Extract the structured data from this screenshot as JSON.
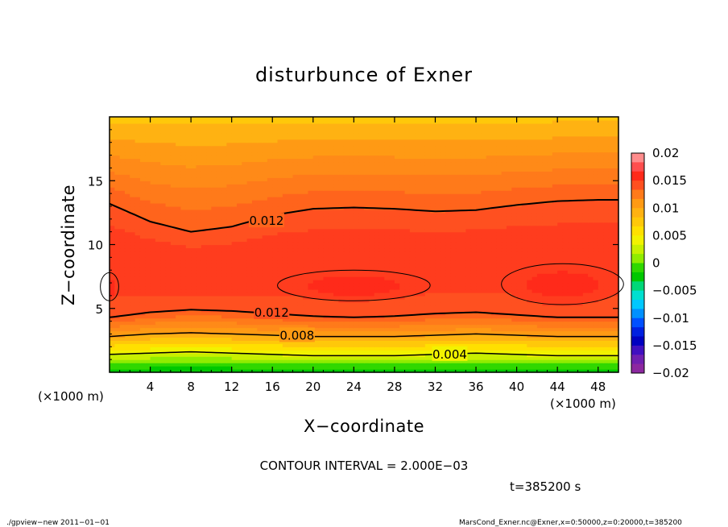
{
  "chart_data": {
    "type": "heatmap",
    "subtype": "filled contour",
    "title": "disturbunce of Exner",
    "xlabel": "X−coordinate",
    "ylabel": "Z−coordinate",
    "x_unit_label": "(×1000 m)",
    "y_unit_label": "(×1000 m)",
    "xlim": [
      0,
      50
    ],
    "ylim": [
      0,
      20
    ],
    "x_ticks": [
      4,
      8,
      12,
      16,
      20,
      24,
      28,
      32,
      36,
      40,
      44,
      48
    ],
    "x_tick_labels": [
      "4",
      "8",
      "12",
      "16",
      "20",
      "24",
      "28",
      "32",
      "36",
      "40",
      "44",
      "48"
    ],
    "y_ticks": [
      5,
      10,
      15
    ],
    "y_tick_labels": [
      "5",
      "10",
      "15"
    ],
    "contour_interval_text": "CONTOUR INTERVAL = 2.000E−03",
    "time_text": "t=385200 s",
    "colorbar": {
      "range": [
        -0.02,
        0.02
      ],
      "tick_values": [
        0.02,
        0.015,
        0.01,
        0.005,
        0,
        -0.005,
        -0.01,
        -0.015,
        -0.02
      ],
      "tick_labels": [
        "0.02",
        "0.015",
        "0.01",
        "0.005",
        "0",
        "−0.005",
        "−0.01",
        "−0.015",
        "−0.02"
      ],
      "colors_top_to_bottom": [
        "#ff8c8c",
        "#ff4e4e",
        "#ff2a1a",
        "#ff5020",
        "#ff7a1a",
        "#ff9a14",
        "#ffb212",
        "#ffc80a",
        "#ffe000",
        "#f2f200",
        "#c8f000",
        "#90ec00",
        "#30d800",
        "#00c800",
        "#00d878",
        "#00e0d0",
        "#00c8ff",
        "#0090ff",
        "#0050ff",
        "#0020e0",
        "#0000c0",
        "#4010c0",
        "#7020b0",
        "#8c28a0"
      ]
    },
    "contour_labels": [
      "0.012",
      "0.012",
      "0.008",
      "0.004"
    ],
    "field_bands": [
      {
        "level": 0.0,
        "color": "#00c800"
      },
      {
        "level": 0.001,
        "color": "#30d800"
      },
      {
        "level": 0.002,
        "color": "#90ec00"
      },
      {
        "level": 0.003,
        "color": "#c8f000"
      },
      {
        "level": 0.004,
        "color": "#f2f200"
      },
      {
        "level": 0.005,
        "color": "#ffe000"
      },
      {
        "level": 0.006,
        "color": "#ffc80a"
      },
      {
        "level": 0.007,
        "color": "#ffb212"
      },
      {
        "level": 0.008,
        "color": "#ff9a14"
      },
      {
        "level": 0.009,
        "color": "#ff8a18"
      },
      {
        "level": 0.01,
        "color": "#ff7a1a"
      },
      {
        "level": 0.011,
        "color": "#ff641c"
      },
      {
        "level": 0.012,
        "color": "#ff5020"
      },
      {
        "level": 0.013,
        "color": "#ff3c1e"
      },
      {
        "level": 0.014,
        "color": "#ff2a1a"
      }
    ],
    "contour_lines": [
      {
        "level": 0.012,
        "label": "0.012",
        "x": [
          0,
          4,
          8,
          12,
          16,
          20,
          24,
          28,
          32,
          36,
          40,
          44,
          48,
          50
        ],
        "y": [
          13.2,
          11.8,
          11.0,
          11.4,
          12.3,
          12.8,
          12.9,
          12.8,
          12.6,
          12.7,
          13.1,
          13.4,
          13.5,
          13.5
        ]
      },
      {
        "level": 0.012,
        "label": "0.012",
        "x": [
          0,
          4,
          8,
          12,
          16,
          20,
          24,
          28,
          32,
          36,
          40,
          44,
          48,
          50
        ],
        "y": [
          4.3,
          4.7,
          4.9,
          4.8,
          4.6,
          4.4,
          4.3,
          4.4,
          4.6,
          4.7,
          4.5,
          4.3,
          4.3,
          4.3
        ]
      },
      {
        "level": 0.008,
        "label": "0.008",
        "x": [
          0,
          4,
          8,
          12,
          16,
          20,
          24,
          28,
          32,
          36,
          40,
          44,
          48,
          50
        ],
        "y": [
          2.8,
          3.0,
          3.1,
          3.0,
          2.9,
          2.8,
          2.8,
          2.8,
          2.9,
          3.0,
          2.9,
          2.8,
          2.8,
          2.8
        ]
      },
      {
        "level": 0.004,
        "label": "0.004",
        "x": [
          0,
          4,
          8,
          12,
          16,
          20,
          24,
          28,
          32,
          36,
          40,
          44,
          48,
          50
        ],
        "y": [
          1.4,
          1.5,
          1.6,
          1.5,
          1.4,
          1.3,
          1.3,
          1.3,
          1.4,
          1.5,
          1.4,
          1.3,
          1.3,
          1.3
        ]
      }
    ],
    "closed_maxima": [
      {
        "level": 0.014,
        "center_x": 24,
        "center_z": 6.8,
        "half_width_x": 7.5,
        "half_height_z": 1.2
      },
      {
        "level": 0.014,
        "center_x": 44.5,
        "center_z": 6.9,
        "half_width_x": 6.0,
        "half_height_z": 1.6
      },
      {
        "level": 0.014,
        "center_x": 0.0,
        "center_z": 6.7,
        "half_width_x": 0.9,
        "half_height_z": 1.1
      }
    ]
  },
  "footer": {
    "left": "./gpview−new  2011−01−01",
    "right": "MarsCond_Exner.nc@Exner,x=0:50000,z=0:20000,t=385200"
  }
}
